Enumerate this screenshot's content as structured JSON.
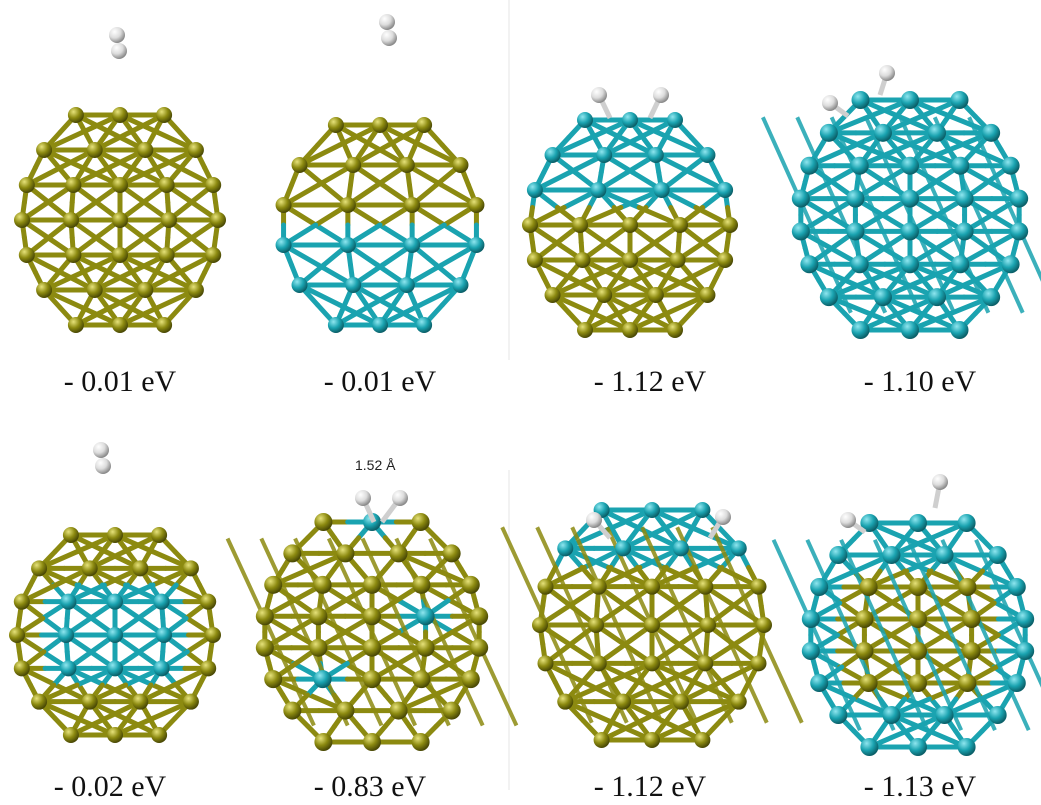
{
  "colors": {
    "gold": "#8c8a10",
    "cyan": "#1aa3b0",
    "hydrogen": "#dcdcdc"
  },
  "panels": [
    {
      "id": "p1",
      "energy": "- 0.01 eV",
      "style": "gold",
      "h2": "molecule"
    },
    {
      "id": "p2",
      "energy": "- 0.01 eV",
      "style": "mixed-top-gold",
      "h2": "molecule"
    },
    {
      "id": "p3",
      "energy": "- 1.12 eV",
      "style": "mixed-top-cyan",
      "h2": "dissociated"
    },
    {
      "id": "p4",
      "energy": "- 1.10 eV",
      "style": "cyan",
      "h2": "dissociated"
    },
    {
      "id": "p5",
      "energy": "- 0.02 eV",
      "style": "gold-core-cyan",
      "h2": "molecule"
    },
    {
      "id": "p6",
      "energy": "- 0.83 eV",
      "style": "gold-dense",
      "h2": "adsorbed"
    },
    {
      "id": "p7",
      "energy": "- 1.12 eV",
      "style": "gold-top-cyan",
      "h2": "dissociated"
    },
    {
      "id": "p8",
      "energy": "- 1.13 eV",
      "style": "cyan-core-gold",
      "h2": "dissociated"
    }
  ],
  "annotation": {
    "distance": "1.52 Å"
  }
}
